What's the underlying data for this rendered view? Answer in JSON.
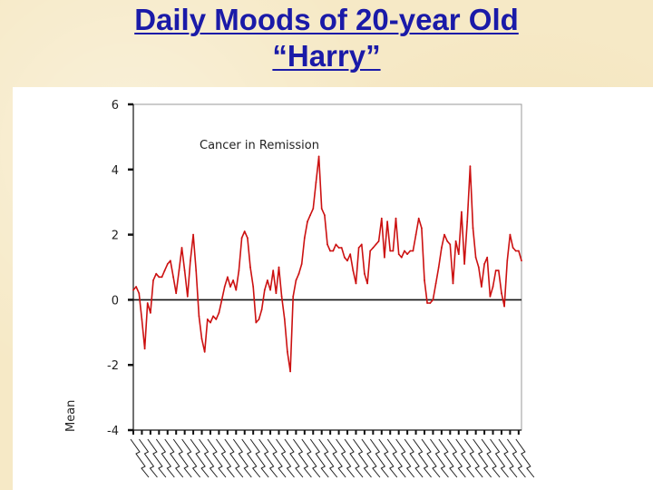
{
  "slide": {
    "title_line1": "Daily Moods of 20-year Old",
    "title_line2": "“Harry”"
  },
  "chart_data": {
    "type": "line",
    "title": "",
    "annotation": "Cancer in Remission",
    "xlabel": "",
    "ylabel": "Mean",
    "ylim": [
      -4,
      6
    ],
    "y_ticks": [
      -4,
      -2,
      0,
      2,
      4,
      6
    ],
    "reference_line": 0,
    "x_tick_labels": "illegible dense rotated day labels",
    "series_color": "#cc1111",
    "series": [
      {
        "name": "",
        "values": [
          0.3,
          0.4,
          0.2,
          -0.6,
          -1.5,
          -0.1,
          -0.4,
          0.6,
          0.8,
          0.7,
          0.7,
          0.9,
          1.1,
          1.2,
          0.7,
          0.2,
          0.9,
          1.6,
          0.9,
          0.1,
          1.2,
          2.0,
          0.9,
          -0.5,
          -1.2,
          -1.6,
          -0.6,
          -0.7,
          -0.5,
          -0.6,
          -0.4,
          0.0,
          0.4,
          0.7,
          0.4,
          0.6,
          0.3,
          0.9,
          1.9,
          2.1,
          1.9,
          1.0,
          0.4,
          -0.7,
          -0.6,
          -0.3,
          0.3,
          0.6,
          0.3,
          0.9,
          0.2,
          1.0,
          0.1,
          -0.6,
          -1.6,
          -2.2,
          0.1,
          0.6,
          0.8,
          1.1,
          1.9,
          2.4,
          2.6,
          2.8,
          3.6,
          4.4,
          2.8,
          2.6,
          1.7,
          1.5,
          1.5,
          1.7,
          1.6,
          1.6,
          1.3,
          1.2,
          1.4,
          0.9,
          0.5,
          1.6,
          1.7,
          0.8,
          0.5,
          1.5,
          1.6,
          1.7,
          1.8,
          2.5,
          1.3,
          2.4,
          1.5,
          1.5,
          2.5,
          1.4,
          1.3,
          1.5,
          1.4,
          1.5,
          1.5,
          2.0,
          2.5,
          2.2,
          0.6,
          -0.1,
          -0.1,
          0.0,
          0.5,
          1.0,
          1.6,
          2.0,
          1.8,
          1.7,
          0.5,
          1.8,
          1.4,
          2.7,
          1.1,
          2.4,
          4.1,
          2.2,
          1.3,
          1.0,
          0.4,
          1.1,
          1.3,
          0.1,
          0.4,
          0.9,
          0.9,
          0.2,
          -0.2,
          1.2,
          2.0,
          1.6,
          1.5,
          1.5,
          1.2
        ]
      }
    ]
  }
}
